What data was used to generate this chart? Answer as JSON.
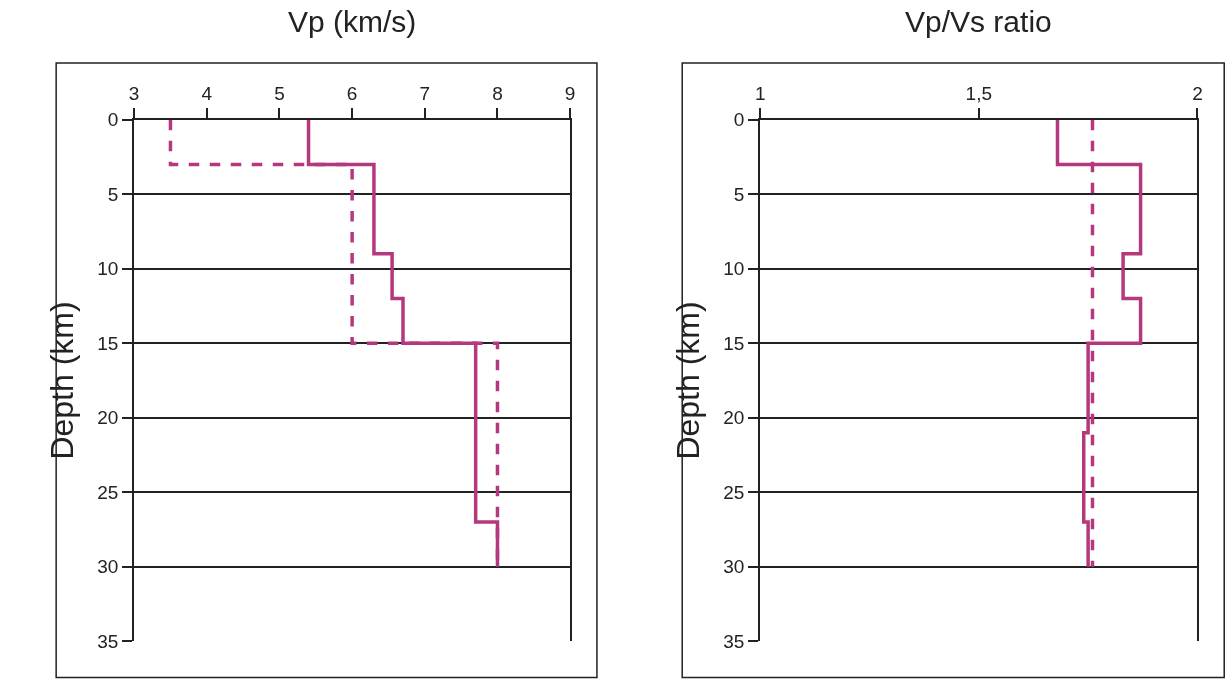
{
  "chart_data": [
    {
      "type": "line",
      "title": "Vp (km/s)",
      "ylabel": "Depth (km)",
      "xlim": [
        3,
        9
      ],
      "xticks": [
        3,
        4,
        5,
        6,
        7,
        8,
        9
      ],
      "ylim": [
        35,
        0
      ],
      "yticks": [
        0,
        5,
        10,
        15,
        20,
        25,
        30,
        35
      ],
      "grid": "y",
      "series": [
        {
          "color": "#b5387f",
          "line_style": "solid",
          "x": [
            5.4,
            5.4,
            6.3,
            6.3,
            6.55,
            6.55,
            6.7,
            6.7,
            7.7,
            7.7,
            8,
            8
          ],
          "values": [
            0,
            3,
            3,
            9,
            9,
            12,
            12,
            15,
            15,
            27,
            27,
            30
          ]
        },
        {
          "color": "#b5387f",
          "line_style": "dashed",
          "x": [
            3.5,
            3.5,
            6,
            6,
            8,
            8
          ],
          "values": [
            0,
            3,
            3,
            15,
            15,
            30
          ]
        }
      ]
    },
    {
      "type": "line",
      "title": "Vp/Vs ratio",
      "ylabel": "Depth (km)",
      "xlim": [
        1,
        2
      ],
      "xticks": [
        1,
        {
          "value": 1.5,
          "label": "1,5"
        },
        2
      ],
      "ylim": [
        35,
        0
      ],
      "yticks": [
        0,
        5,
        10,
        15,
        20,
        25,
        30,
        35
      ],
      "grid": "y",
      "series": [
        {
          "color": "#b5387f",
          "line_style": "solid",
          "x": [
            1.68,
            1.68,
            1.87,
            1.87,
            1.83,
            1.83,
            1.87,
            1.87,
            1.75,
            1.75,
            1.74,
            1.74,
            1.75,
            1.75
          ],
          "values": [
            0,
            3,
            3,
            9,
            9,
            12,
            12,
            15,
            15,
            21,
            21,
            27,
            27,
            30
          ]
        },
        {
          "color": "#b5387f",
          "line_style": "dashed",
          "x": [
            1.76,
            1.76
          ],
          "values": [
            0,
            30
          ]
        }
      ]
    }
  ]
}
